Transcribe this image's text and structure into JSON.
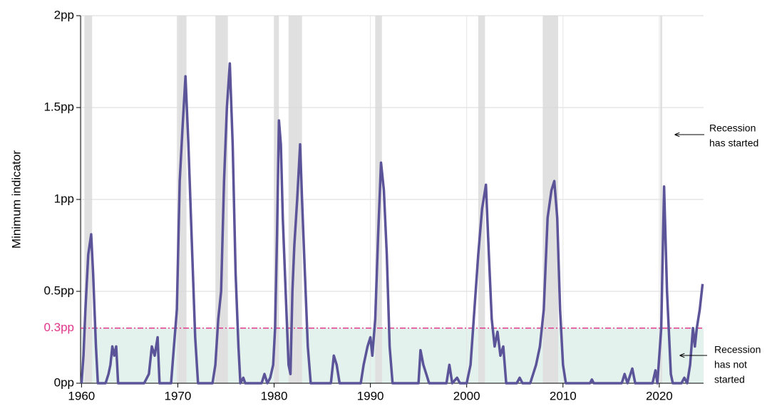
{
  "chart_data": {
    "type": "line",
    "y_label": "Minimum indicator",
    "xlim": [
      1959.9,
      2024.6
    ],
    "xticks": [
      1960,
      1970,
      1980,
      1990,
      2000,
      2010,
      2020
    ],
    "ylim": [
      0,
      2
    ],
    "yticks": [
      {
        "value": 0,
        "label": "0pp"
      },
      {
        "value": 0.5,
        "label": "0.5pp"
      },
      {
        "value": 1,
        "label": "1pp"
      },
      {
        "value": 1.5,
        "label": "1.5pp"
      },
      {
        "value": 2,
        "label": "2pp"
      }
    ],
    "grid": true,
    "threshold": {
      "value": 0.3,
      "label": "0.3pp",
      "color": "#e0368a",
      "fill": "#e3f2ec"
    },
    "recession_color": "#e0e0e0",
    "recessions": [
      [
        1960.3,
        1961.1
      ],
      [
        1969.9,
        1970.9
      ],
      [
        1973.9,
        1975.2
      ],
      [
        1980.0,
        1980.5
      ],
      [
        1981.5,
        1982.9
      ],
      [
        1990.5,
        1991.2
      ],
      [
        2001.2,
        2001.9
      ],
      [
        2007.9,
        2009.5
      ],
      [
        2020.1,
        2020.3
      ]
    ],
    "annotations": [
      {
        "lines": [
          "Recession",
          "has started"
        ]
      },
      {
        "lines": [
          "Recession",
          "has not",
          "started"
        ]
      }
    ],
    "x": [
      1960.0,
      1960.2,
      1960.4,
      1960.7,
      1961.0,
      1961.2,
      1961.5,
      1961.7,
      1962.5,
      1962.8,
      1963.0,
      1963.2,
      1963.4,
      1963.6,
      1963.8,
      1965.0,
      1966.5,
      1967.0,
      1967.3,
      1967.6,
      1967.9,
      1968.1,
      1969.3,
      1969.6,
      1969.9,
      1970.2,
      1970.5,
      1970.8,
      1971.1,
      1971.5,
      1971.8,
      1972.1,
      1973.6,
      1973.9,
      1974.2,
      1974.5,
      1974.8,
      1975.1,
      1975.4,
      1975.7,
      1976.0,
      1976.3,
      1976.5,
      1976.8,
      1977.0,
      1978.7,
      1979.0,
      1979.3,
      1979.6,
      1979.9,
      1980.1,
      1980.3,
      1980.5,
      1980.7,
      1980.9,
      1981.2,
      1981.5,
      1981.7,
      1981.9,
      1982.1,
      1982.4,
      1982.7,
      1982.9,
      1983.2,
      1983.5,
      1983.8,
      1985.9,
      1986.2,
      1986.5,
      1986.8,
      1989.0,
      1989.3,
      1989.7,
      1990.0,
      1990.2,
      1990.5,
      1990.8,
      1991.1,
      1991.4,
      1991.7,
      1992.0,
      1992.3,
      1995.0,
      1995.2,
      1995.5,
      1995.8,
      1996.1,
      1997.9,
      1998.2,
      1998.5,
      1999.0,
      1999.3,
      2000.0,
      2000.4,
      2000.8,
      2001.2,
      2001.6,
      2002.0,
      2002.3,
      2002.6,
      2002.9,
      2003.2,
      2003.5,
      2003.8,
      2004.1,
      2005.2,
      2005.5,
      2005.8,
      2006.6,
      2006.9,
      2007.2,
      2007.6,
      2008.0,
      2008.4,
      2008.8,
      2009.1,
      2009.4,
      2009.7,
      2010.0,
      2010.3,
      2012.8,
      2013.0,
      2013.2,
      2016.1,
      2016.4,
      2016.7,
      2017.2,
      2017.5,
      2019.3,
      2019.6,
      2019.8,
      2020.2,
      2020.5,
      2020.8,
      2021.2,
      2021.4,
      2022.3,
      2022.6,
      2022.9,
      2023.2,
      2023.5,
      2023.7,
      2023.9,
      2024.2,
      2024.5
    ],
    "series": [
      {
        "color": "#5b5499",
        "values": [
          0,
          0.15,
          0.4,
          0.7,
          0.81,
          0.6,
          0.2,
          0,
          0,
          0.05,
          0.1,
          0.2,
          0.15,
          0.2,
          0,
          0,
          0,
          0.05,
          0.2,
          0.15,
          0.25,
          0,
          0,
          0.2,
          0.4,
          1.1,
          1.4,
          1.67,
          1.3,
          0.7,
          0.25,
          0,
          0,
          0.1,
          0.35,
          0.5,
          1.1,
          1.5,
          1.74,
          1.3,
          0.6,
          0.2,
          0,
          0.03,
          0,
          0,
          0.05,
          0,
          0.03,
          0.1,
          0.3,
          0.8,
          1.43,
          1.3,
          0.9,
          0.5,
          0.1,
          0.05,
          0.5,
          0.75,
          1.0,
          1.3,
          1.0,
          0.6,
          0.2,
          0,
          0,
          0.15,
          0.1,
          0,
          0,
          0.1,
          0.2,
          0.25,
          0.15,
          0.35,
          0.8,
          1.2,
          1.05,
          0.7,
          0.2,
          0,
          0,
          0.18,
          0.1,
          0.05,
          0,
          0,
          0.1,
          0,
          0.03,
          0,
          0,
          0.1,
          0.4,
          0.7,
          0.95,
          1.08,
          0.7,
          0.35,
          0.2,
          0.28,
          0.15,
          0.2,
          0,
          0,
          0.03,
          0,
          0,
          0.05,
          0.1,
          0.2,
          0.4,
          0.9,
          1.05,
          1.1,
          0.9,
          0.4,
          0.1,
          0,
          0,
          0.02,
          0,
          0,
          0.05,
          0,
          0.08,
          0,
          0,
          0.07,
          0,
          0.3,
          1.07,
          0.5,
          0.05,
          0,
          0,
          0.03,
          0,
          0.1,
          0.3,
          0.2,
          0.3,
          0.4,
          0.54
        ]
      }
    ]
  }
}
